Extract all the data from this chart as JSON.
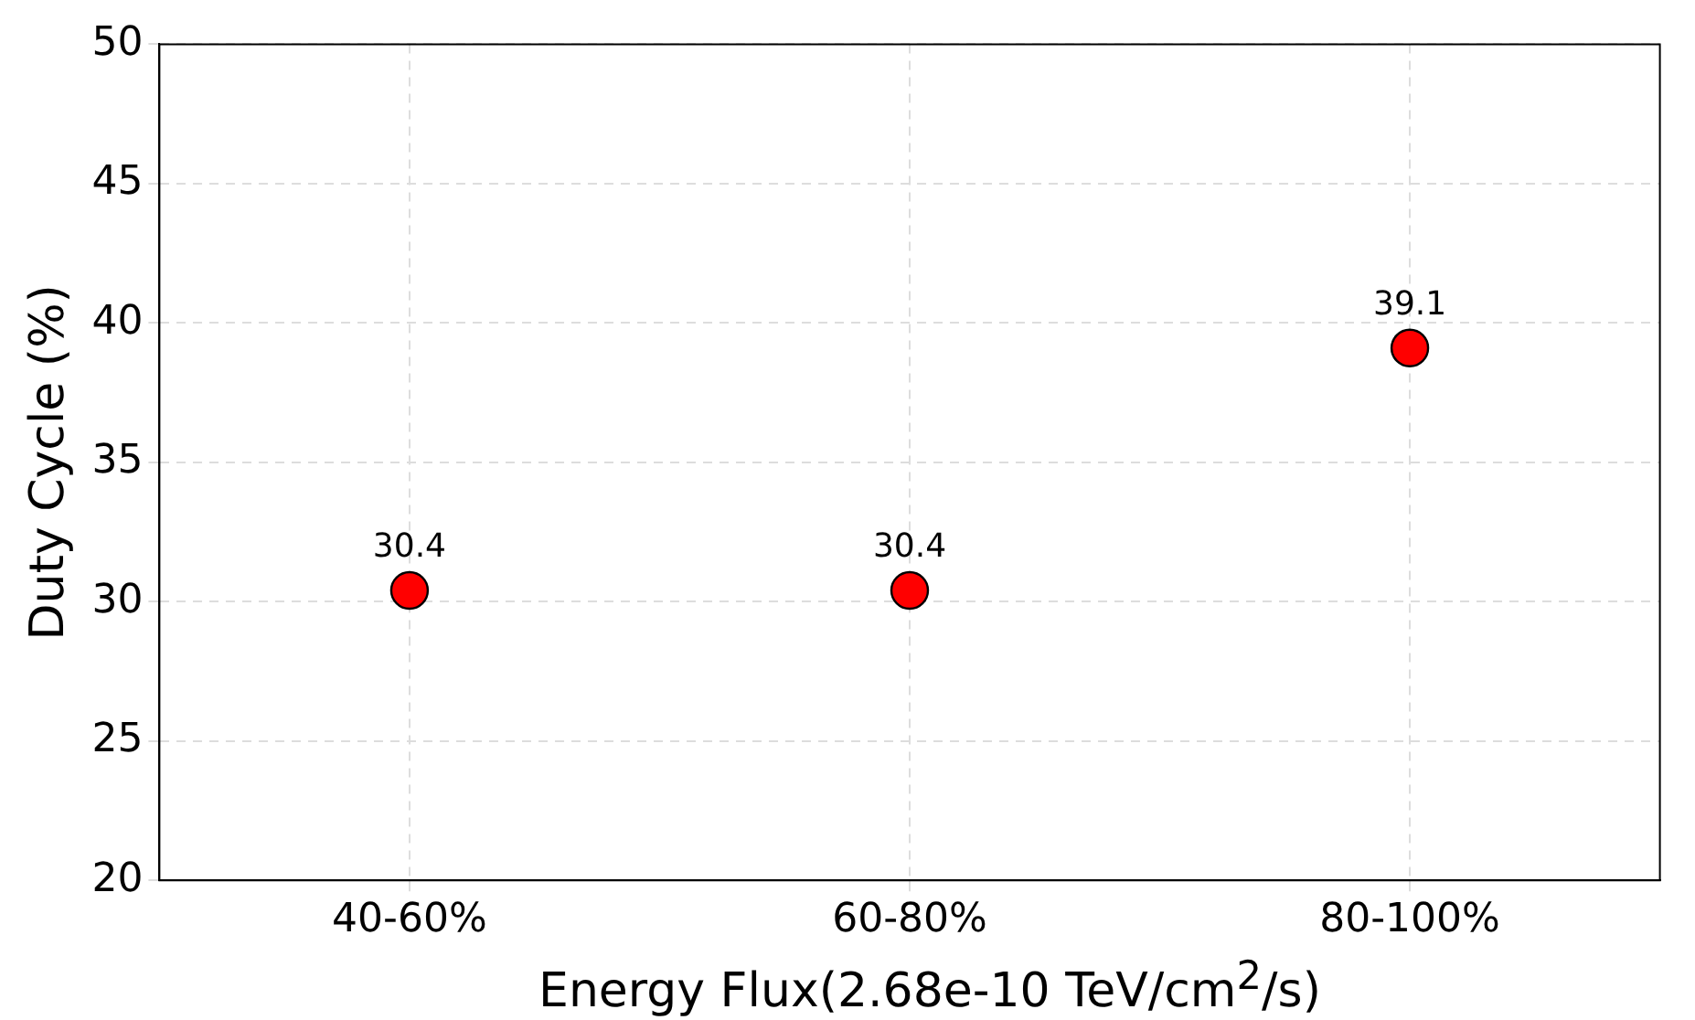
{
  "chart_data": {
    "type": "scatter",
    "xlabel": "Energy Flux(2.68e-10 TeV/cm$^{2}$/s)",
    "ylabel": "Duty Cycle (%)",
    "categories": [
      "40-60%",
      "60-80%",
      "80-100%"
    ],
    "series": [
      {
        "color": "#ff0000",
        "values": [
          30.4,
          30.4,
          39.1
        ]
      }
    ],
    "ylim": [
      20,
      50
    ],
    "yticks": [
      20,
      25,
      30,
      35,
      40,
      45,
      50
    ],
    "grid": true,
    "data_labels": true,
    "marker": "circle",
    "legend": false
  }
}
